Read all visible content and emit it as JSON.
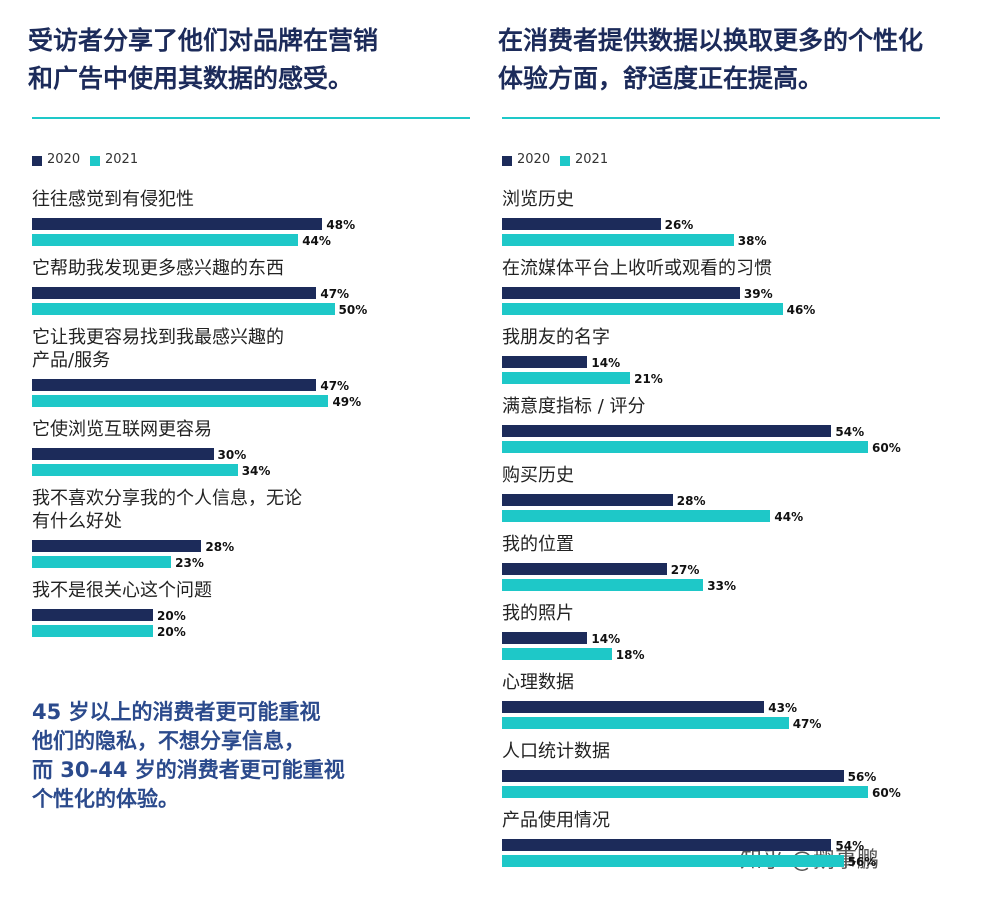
{
  "chart_data": [
    {
      "type": "bar",
      "orientation": "horizontal",
      "title": "受访者分享了他们对品牌在营销\n和广告中使用其数据的感受。",
      "categories": [
        "往往感觉到有侵犯性",
        "它帮助我发现更多感兴趣的东西",
        "它让我更容易找到我最感兴趣的\n产品/服务",
        "它使浏览互联网更容易",
        "我不喜欢分享我的个人信息，无论\n有什么好处",
        "我不是很关心这个问题"
      ],
      "series": [
        {
          "name": "2020",
          "color": "#1c2b5a",
          "values": [
            48,
            47,
            47,
            30,
            28,
            20
          ],
          "value_labels": [
            "48%",
            "47%",
            "47%",
            "30%",
            "28%",
            "20%"
          ]
        },
        {
          "name": "2021",
          "color": "#1ec8c8",
          "values": [
            44,
            50,
            49,
            34,
            23,
            20
          ],
          "value_labels": [
            "44%",
            "50%",
            "49%",
            "34%",
            "23%",
            "20%"
          ]
        }
      ]
    },
    {
      "type": "bar",
      "orientation": "horizontal",
      "title": "在消费者提供数据以换取更多的个性化\n体验方面，舒适度正在提高。",
      "categories": [
        "浏览历史",
        "在流媒体平台上收听或观看的习惯",
        "我朋友的名字",
        "满意度指标 / 评分",
        "购买历史",
        "我的位置",
        "我的照片",
        "心理数据",
        "人口统计数据",
        "产品使用情况"
      ],
      "series": [
        {
          "name": "2020",
          "color": "#1c2b5a",
          "values": [
            26,
            39,
            14,
            54,
            28,
            27,
            14,
            43,
            56,
            54
          ],
          "value_labels": [
            "26%",
            "39%",
            "14%",
            "54%",
            "28%",
            "27%",
            "14%",
            "43%",
            "56%",
            "54%"
          ]
        },
        {
          "name": "2021",
          "color": "#1ec8c8",
          "values": [
            38,
            46,
            21,
            60,
            44,
            33,
            18,
            47,
            60,
            56
          ],
          "value_labels": [
            "38%",
            "46%",
            "21%",
            "60%",
            "44%",
            "33%",
            "18%",
            "47%",
            "60%",
            "56%"
          ]
        }
      ]
    }
  ],
  "note": "45 岁以上的消费者更可能重视\n他们的隐私，不想分享信息，\n而 30-44 岁的消费者更可能重视\n个性化的体验。",
  "watermark": "知乎 @鹅事鹏"
}
